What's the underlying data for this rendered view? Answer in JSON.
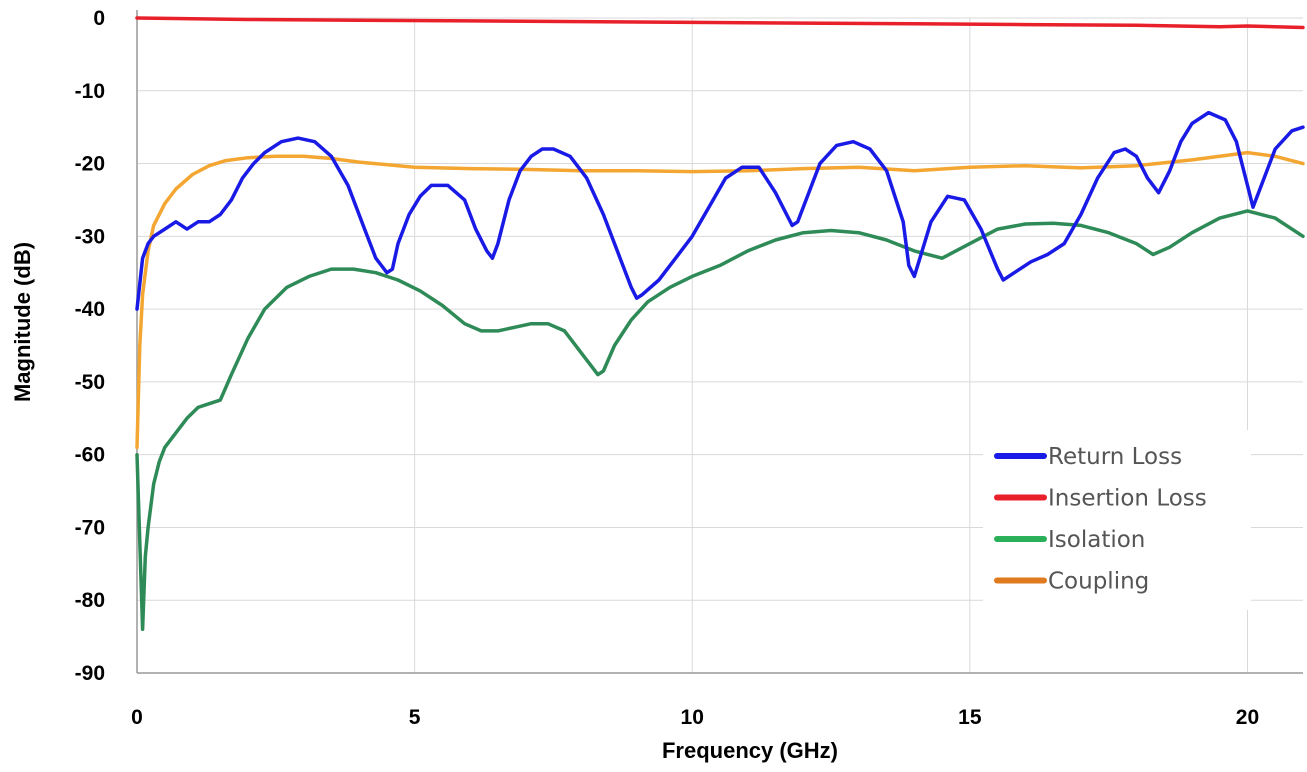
{
  "chart_data": {
    "type": "line",
    "title": "",
    "xlabel": "Frequency (GHz)",
    "ylabel": "Magnitude (dB)",
    "xlim": [
      0,
      21
    ],
    "ylim": [
      -90,
      0
    ],
    "xticks": [
      0,
      5,
      10,
      15,
      20
    ],
    "yticks": [
      0,
      -10,
      -20,
      -30,
      -40,
      -50,
      -60,
      -70,
      -80,
      -90
    ],
    "grid": true,
    "legend_position": "bottom-right",
    "series": [
      {
        "name": "Return Loss",
        "color": "#1a1ae6",
        "x": [
          0,
          0.1,
          0.2,
          0.3,
          0.5,
          0.7,
          0.9,
          1.1,
          1.3,
          1.5,
          1.7,
          1.9,
          2.1,
          2.3,
          2.6,
          2.9,
          3.2,
          3.5,
          3.8,
          4.1,
          4.3,
          4.5,
          4.6,
          4.7,
          4.9,
          5.1,
          5.3,
          5.6,
          5.9,
          6.1,
          6.3,
          6.4,
          6.5,
          6.7,
          6.9,
          7.1,
          7.3,
          7.5,
          7.8,
          8.1,
          8.4,
          8.7,
          8.9,
          9.0,
          9.1,
          9.4,
          9.7,
          10.0,
          10.3,
          10.6,
          10.9,
          11.2,
          11.5,
          11.7,
          11.8,
          11.9,
          12.1,
          12.3,
          12.6,
          12.9,
          13.2,
          13.5,
          13.8,
          13.9,
          14.0,
          14.1,
          14.3,
          14.6,
          14.9,
          15.2,
          15.5,
          15.6,
          15.8,
          16.1,
          16.4,
          16.7,
          17.0,
          17.3,
          17.6,
          17.8,
          18.0,
          18.2,
          18.4,
          18.6,
          18.8,
          19.0,
          19.3,
          19.6,
          19.8,
          19.9,
          20.0,
          20.1,
          20.3,
          20.5,
          20.8,
          21.0
        ],
        "y": [
          -40,
          -33,
          -31,
          -30,
          -29,
          -28,
          -29,
          -28,
          -28,
          -27,
          -25,
          -22,
          -20,
          -18.5,
          -17,
          -16.5,
          -17,
          -19,
          -23,
          -29,
          -33,
          -35,
          -34.5,
          -31,
          -27,
          -24.5,
          -23,
          -23,
          -25,
          -29,
          -32,
          -33,
          -31,
          -25,
          -21,
          -19,
          -18,
          -18,
          -19,
          -22,
          -27,
          -33,
          -37,
          -38.5,
          -38,
          -36,
          -33,
          -30,
          -26,
          -22,
          -20.5,
          -20.5,
          -24,
          -27,
          -28.5,
          -28,
          -24,
          -20,
          -17.5,
          -17,
          -18,
          -21,
          -28,
          -34,
          -35.5,
          -33,
          -28,
          -24.5,
          -25,
          -29,
          -34.5,
          -36,
          -35,
          -33.5,
          -32.5,
          -31,
          -27,
          -22,
          -18.5,
          -18,
          -19,
          -22,
          -24,
          -21,
          -17,
          -14.5,
          -13,
          -14,
          -17,
          -20,
          -23,
          -26,
          -22,
          -18,
          -15.5,
          -15
        ]
      },
      {
        "name": "Insertion Loss",
        "color": "#e8202a",
        "x": [
          0,
          2,
          4,
          6,
          8,
          10,
          12,
          14,
          16,
          18,
          19.5,
          20,
          21
        ],
        "y": [
          0,
          -0.2,
          -0.3,
          -0.4,
          -0.5,
          -0.6,
          -0.7,
          -0.8,
          -0.9,
          -1.0,
          -1.2,
          -1.1,
          -1.3
        ]
      },
      {
        "name": "Isolation",
        "color": "#2e8b57",
        "x": [
          0,
          0.05,
          0.1,
          0.15,
          0.2,
          0.3,
          0.4,
          0.5,
          0.7,
          0.9,
          1.1,
          1.3,
          1.5,
          1.7,
          2.0,
          2.3,
          2.7,
          3.1,
          3.5,
          3.9,
          4.3,
          4.7,
          5.1,
          5.5,
          5.9,
          6.2,
          6.5,
          6.8,
          7.1,
          7.4,
          7.7,
          8.0,
          8.2,
          8.3,
          8.4,
          8.6,
          8.9,
          9.2,
          9.6,
          10.0,
          10.5,
          11.0,
          11.5,
          12.0,
          12.5,
          13.0,
          13.5,
          14.0,
          14.5,
          15.0,
          15.5,
          16.0,
          16.5,
          17.0,
          17.5,
          18.0,
          18.3,
          18.6,
          19.0,
          19.5,
          20.0,
          20.5,
          21.0
        ],
        "y": [
          -60,
          -72,
          -84,
          -74,
          -70,
          -64,
          -61,
          -59,
          -57,
          -55,
          -53.5,
          -53,
          -52.5,
          -49,
          -44,
          -40,
          -37,
          -35.5,
          -34.5,
          -34.5,
          -35,
          -36,
          -37.5,
          -39.5,
          -42,
          -43,
          -43,
          -42.5,
          -42,
          -42,
          -43,
          -46,
          -48,
          -49,
          -48.5,
          -45,
          -41.5,
          -39,
          -37,
          -35.5,
          -34,
          -32,
          -30.5,
          -29.5,
          -29.2,
          -29.5,
          -30.5,
          -32,
          -33,
          -31,
          -29,
          -28.3,
          -28.2,
          -28.5,
          -29.5,
          -31,
          -32.5,
          -31.5,
          -29.5,
          -27.5,
          -26.5,
          -27.5,
          -30
        ]
      },
      {
        "name": "Coupling",
        "color": "#f3a632",
        "x": [
          0,
          0.05,
          0.1,
          0.2,
          0.3,
          0.5,
          0.7,
          1.0,
          1.3,
          1.6,
          2.0,
          2.5,
          3.0,
          3.5,
          4.0,
          5.0,
          6.0,
          7.0,
          8.0,
          9.0,
          10.0,
          11.0,
          12.0,
          13.0,
          14.0,
          15.0,
          16.0,
          17.0,
          18.0,
          19.0,
          20.0,
          20.5,
          21.0
        ],
        "y": [
          -59,
          -45,
          -38,
          -32,
          -28.5,
          -25.5,
          -23.5,
          -21.5,
          -20.3,
          -19.6,
          -19.2,
          -19.0,
          -19.0,
          -19.3,
          -19.8,
          -20.5,
          -20.7,
          -20.8,
          -21.0,
          -21.0,
          -21.1,
          -21.0,
          -20.7,
          -20.5,
          -21.0,
          -20.5,
          -20.3,
          -20.6,
          -20.3,
          -19.5,
          -18.5,
          -19.0,
          -20.0
        ]
      }
    ],
    "legend_swatch_colors": [
      "#1a1ae6",
      "#e8202a",
      "#2bb05a",
      "#e07a1f"
    ]
  }
}
